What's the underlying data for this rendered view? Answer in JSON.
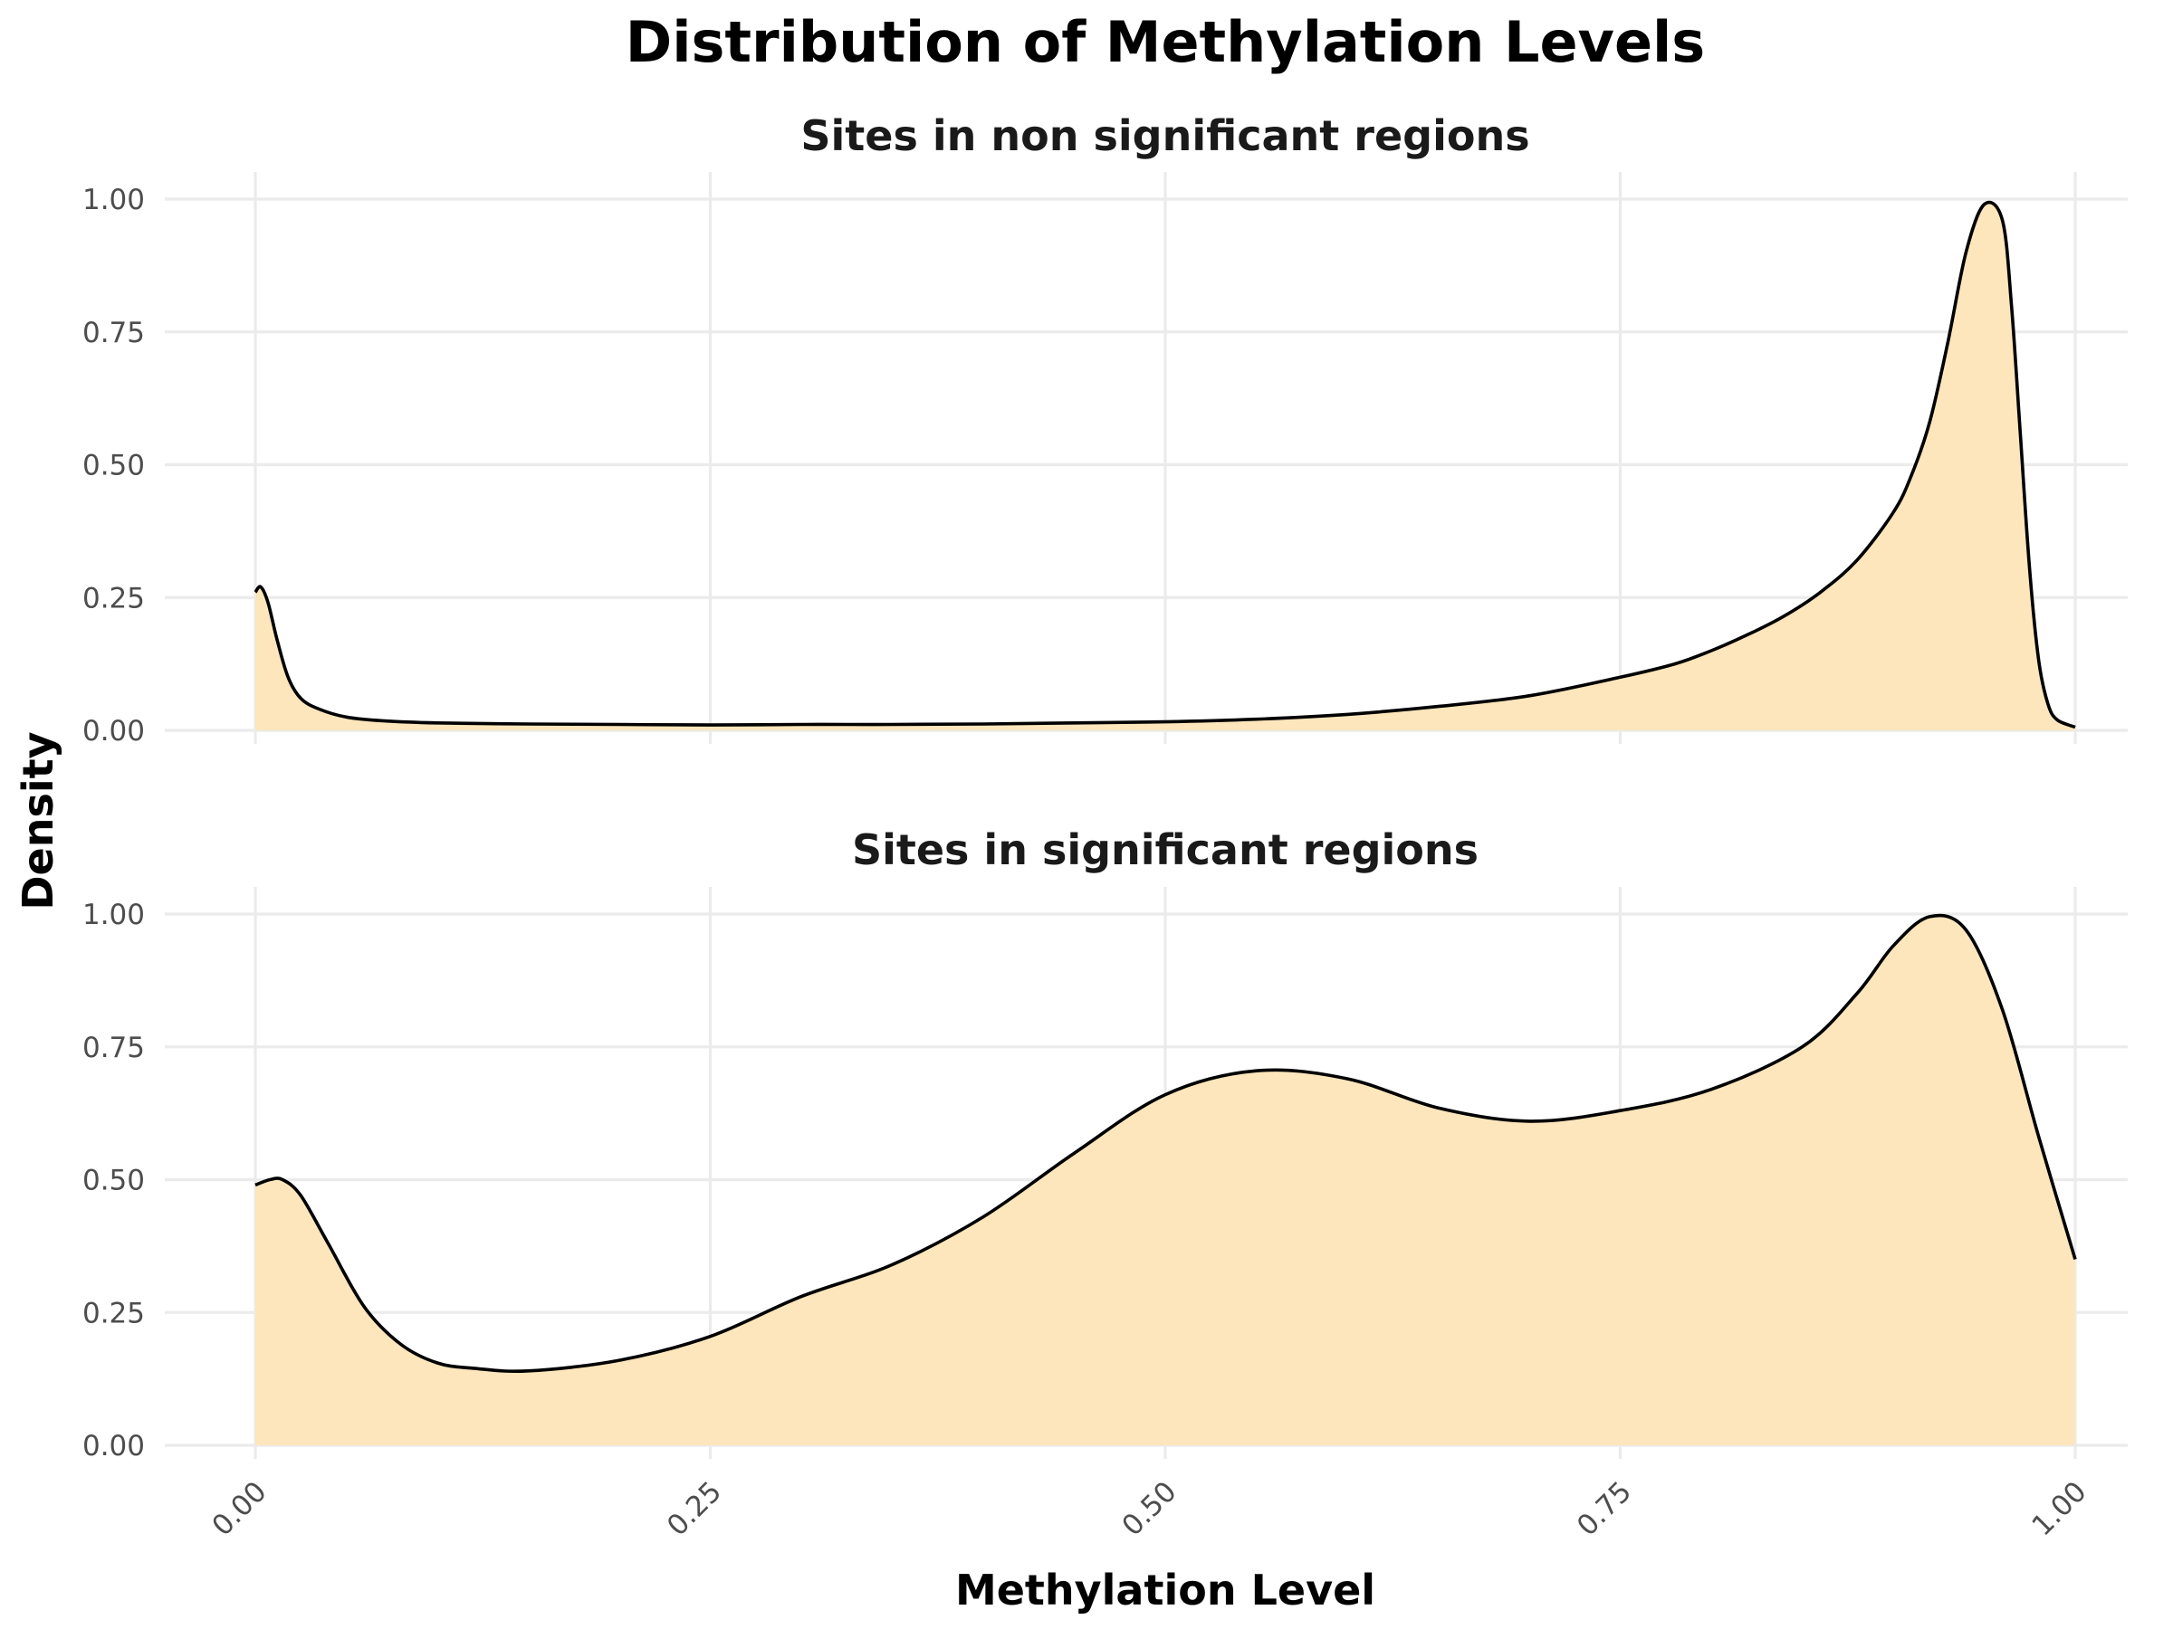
{
  "chart_data": {
    "type": "area",
    "title": "Distribution of Methylation Levels",
    "xlabel": "Methylation Level",
    "ylabel": "Density",
    "xlim": [
      0,
      1
    ],
    "ylim": [
      0,
      1
    ],
    "x_ticks": [
      "0.00",
      "0.25",
      "0.50",
      "0.75",
      "1.00"
    ],
    "y_ticks": [
      "0.00",
      "0.25",
      "0.50",
      "0.75",
      "1.00"
    ],
    "grid": true,
    "fill_color": "#fde6bc",
    "line_color": "#000000",
    "facets": [
      {
        "title": "Sites in non significant regions",
        "x": [
          0.0,
          0.003,
          0.007,
          0.012,
          0.018,
          0.025,
          0.035,
          0.05,
          0.07,
          0.1,
          0.15,
          0.2,
          0.25,
          0.3,
          0.35,
          0.4,
          0.45,
          0.5,
          0.55,
          0.6,
          0.65,
          0.7,
          0.75,
          0.78,
          0.8,
          0.82,
          0.84,
          0.86,
          0.88,
          0.9,
          0.91,
          0.92,
          0.93,
          0.94,
          0.95,
          0.96,
          0.965,
          0.97,
          0.975,
          0.98,
          0.985,
          0.99,
          1.0
        ],
        "y": [
          0.26,
          0.27,
          0.24,
          0.17,
          0.1,
          0.06,
          0.04,
          0.025,
          0.018,
          0.014,
          0.012,
          0.011,
          0.01,
          0.011,
          0.011,
          0.012,
          0.014,
          0.016,
          0.021,
          0.03,
          0.045,
          0.065,
          0.1,
          0.125,
          0.15,
          0.18,
          0.215,
          0.26,
          0.32,
          0.41,
          0.48,
          0.58,
          0.73,
          0.9,
          0.99,
          0.96,
          0.8,
          0.55,
          0.3,
          0.13,
          0.05,
          0.02,
          0.006
        ]
      },
      {
        "title": "Sites in significant regions",
        "x": [
          0.0,
          0.008,
          0.015,
          0.025,
          0.04,
          0.06,
          0.08,
          0.1,
          0.12,
          0.15,
          0.2,
          0.25,
          0.3,
          0.35,
          0.4,
          0.45,
          0.5,
          0.55,
          0.6,
          0.65,
          0.7,
          0.75,
          0.8,
          0.85,
          0.88,
          0.9,
          0.92,
          0.94,
          0.96,
          0.98,
          1.0
        ],
        "y": [
          0.49,
          0.5,
          0.5,
          0.47,
          0.38,
          0.26,
          0.19,
          0.155,
          0.145,
          0.14,
          0.16,
          0.205,
          0.28,
          0.34,
          0.43,
          0.55,
          0.66,
          0.705,
          0.69,
          0.635,
          0.61,
          0.63,
          0.67,
          0.75,
          0.85,
          0.94,
          0.995,
          0.97,
          0.82,
          0.58,
          0.35
        ]
      }
    ]
  }
}
